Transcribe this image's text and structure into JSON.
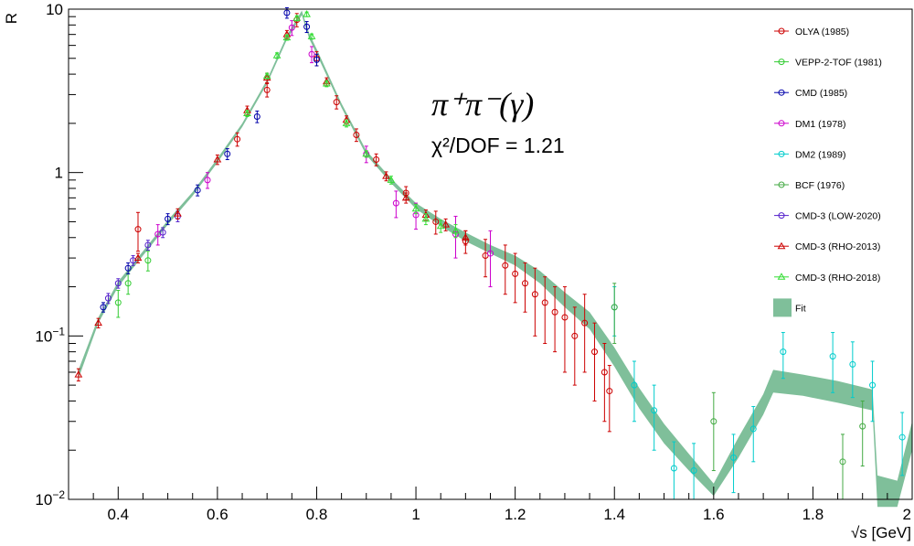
{
  "chart_data": {
    "type": "scatter",
    "xlabel": "√s [GeV]",
    "ylabel": "R",
    "xlim": [
      0.3,
      2.0
    ],
    "ylim": [
      0.01,
      10
    ],
    "yscale": "log",
    "x_tick_labels": [
      "0.4",
      "0.6",
      "0.8",
      "1",
      "1.2",
      "1.4",
      "1.6",
      "1.8",
      "2"
    ],
    "x_ticks": [
      0.4,
      0.6,
      0.8,
      1.0,
      1.2,
      1.4,
      1.6,
      1.8,
      2.0
    ],
    "y_ticks": [
      {
        "value": 10,
        "base": "10",
        "exp": ""
      },
      {
        "value": 1,
        "base": "1",
        "exp": ""
      },
      {
        "value": 0.1,
        "base": "10",
        "exp": "−1"
      },
      {
        "value": 0.01,
        "base": "10",
        "exp": "−2"
      }
    ],
    "annotation": {
      "process": "π⁺π⁻(γ)",
      "chi2_label": "χ²/DOF = 1.21",
      "chi2_value": 1.21
    },
    "series": [
      {
        "name": "OLYA (1985)",
        "color": "#cc0000",
        "marker": "circle",
        "points": [
          [
            0.44,
            0.45,
            0.12
          ],
          [
            0.64,
            1.6,
            0.15
          ],
          [
            0.7,
            3.2,
            0.3
          ],
          [
            0.76,
            8.6,
            0.8
          ],
          [
            0.8,
            5.0,
            0.5
          ],
          [
            0.84,
            2.7,
            0.25
          ],
          [
            0.88,
            1.7,
            0.15
          ],
          [
            0.92,
            1.2,
            0.1
          ],
          [
            0.98,
            0.75,
            0.07
          ],
          [
            1.04,
            0.5,
            0.08
          ],
          [
            1.1,
            0.38,
            0.06
          ],
          [
            1.14,
            0.31,
            0.08
          ],
          [
            1.18,
            0.27,
            0.09
          ],
          [
            1.2,
            0.24,
            0.08
          ],
          [
            1.22,
            0.21,
            0.07
          ],
          [
            1.24,
            0.18,
            0.08
          ],
          [
            1.26,
            0.16,
            0.07
          ],
          [
            1.28,
            0.14,
            0.06
          ],
          [
            1.3,
            0.13,
            0.07
          ],
          [
            1.32,
            0.1,
            0.05
          ],
          [
            1.34,
            0.12,
            0.06
          ],
          [
            1.36,
            0.08,
            0.04
          ],
          [
            1.38,
            0.06,
            0.03
          ],
          [
            1.39,
            0.046,
            0.02
          ]
        ]
      },
      {
        "name": "VEPP-2-TOF (1981)",
        "color": "#33cc33",
        "marker": "circle",
        "points": [
          [
            0.4,
            0.16,
            0.03
          ],
          [
            0.42,
            0.21,
            0.03
          ],
          [
            0.46,
            0.29,
            0.04
          ]
        ]
      },
      {
        "name": "CMD (1985)",
        "color": "#0000aa",
        "marker": "circle",
        "points": [
          [
            0.37,
            0.15,
            0.01
          ],
          [
            0.42,
            0.26,
            0.02
          ],
          [
            0.5,
            0.52,
            0.04
          ],
          [
            0.56,
            0.78,
            0.06
          ],
          [
            0.62,
            1.3,
            0.1
          ],
          [
            0.68,
            2.2,
            0.18
          ],
          [
            0.74,
            9.5,
            0.7
          ],
          [
            0.78,
            7.8,
            0.6
          ],
          [
            0.8,
            4.9,
            0.4
          ]
        ]
      },
      {
        "name": "DM1 (1978)",
        "color": "#cc00cc",
        "marker": "circle",
        "points": [
          [
            0.48,
            0.42,
            0.06
          ],
          [
            0.58,
            0.9,
            0.1
          ],
          [
            0.75,
            7.7,
            0.8
          ],
          [
            0.79,
            5.3,
            0.6
          ],
          [
            0.9,
            1.3,
            0.15
          ],
          [
            0.96,
            0.65,
            0.12
          ],
          [
            1.0,
            0.55,
            0.1
          ],
          [
            1.08,
            0.42,
            0.12
          ],
          [
            1.15,
            0.32,
            0.12
          ]
        ]
      },
      {
        "name": "DM2 (1989)",
        "color": "#00cccc",
        "marker": "circle",
        "points": [
          [
            1.4,
            0.15,
            0.05
          ],
          [
            1.44,
            0.05,
            0.02
          ],
          [
            1.48,
            0.035,
            0.015
          ],
          [
            1.52,
            0.0155,
            0.007
          ],
          [
            1.56,
            0.015,
            0.007
          ],
          [
            1.64,
            0.018,
            0.007
          ],
          [
            1.68,
            0.027,
            0.01
          ],
          [
            1.74,
            0.08,
            0.025
          ],
          [
            1.84,
            0.075,
            0.03
          ],
          [
            1.88,
            0.067,
            0.025
          ],
          [
            1.92,
            0.05,
            0.02
          ],
          [
            1.98,
            0.024,
            0.01
          ]
        ]
      },
      {
        "name": "BCF (1976)",
        "color": "#44aa44",
        "marker": "circle",
        "points": [
          [
            1.4,
            0.15,
            0.06
          ],
          [
            1.6,
            0.03,
            0.015
          ],
          [
            1.86,
            0.017,
            0.008
          ],
          [
            1.9,
            0.028,
            0.012
          ]
        ]
      },
      {
        "name": "CMD-3 (LOW-2020)",
        "color": "#5522cc",
        "marker": "circle",
        "points": [
          [
            0.38,
            0.17,
            0.012
          ],
          [
            0.4,
            0.21,
            0.014
          ],
          [
            0.43,
            0.29,
            0.02
          ],
          [
            0.46,
            0.36,
            0.025
          ],
          [
            0.49,
            0.43,
            0.03
          ],
          [
            0.52,
            0.54,
            0.04
          ]
        ]
      },
      {
        "name": "CMD-3 (RHO-2013)",
        "color": "#cc0000",
        "marker": "triangle",
        "points": [
          [
            0.32,
            0.058,
            0.005
          ],
          [
            0.36,
            0.12,
            0.008
          ],
          [
            0.44,
            0.3,
            0.02
          ],
          [
            0.52,
            0.56,
            0.04
          ],
          [
            0.6,
            1.2,
            0.08
          ],
          [
            0.66,
            2.4,
            0.15
          ],
          [
            0.7,
            3.8,
            0.25
          ],
          [
            0.74,
            7.0,
            0.4
          ],
          [
            0.82,
            3.6,
            0.2
          ],
          [
            0.86,
            2.1,
            0.12
          ],
          [
            0.94,
            0.95,
            0.06
          ],
          [
            0.98,
            0.7,
            0.05
          ],
          [
            1.02,
            0.55,
            0.04
          ],
          [
            1.06,
            0.48,
            0.04
          ],
          [
            1.1,
            0.4,
            0.04
          ]
        ]
      },
      {
        "name": "CMD-3 (RHO-2018)",
        "color": "#33dd33",
        "marker": "triangle",
        "points": [
          [
            0.66,
            2.3,
            0.1
          ],
          [
            0.7,
            3.9,
            0.15
          ],
          [
            0.72,
            5.2,
            0.2
          ],
          [
            0.74,
            6.7,
            0.25
          ],
          [
            0.76,
            8.8,
            0.3
          ],
          [
            0.78,
            9.3,
            0.3
          ],
          [
            0.79,
            6.8,
            0.25
          ],
          [
            0.82,
            3.5,
            0.15
          ],
          [
            0.86,
            2.0,
            0.1
          ],
          [
            0.9,
            1.3,
            0.06
          ],
          [
            0.95,
            0.9,
            0.05
          ],
          [
            1.0,
            0.6,
            0.04
          ],
          [
            1.02,
            0.52,
            0.04
          ],
          [
            1.05,
            0.47,
            0.04
          ],
          [
            1.08,
            0.44,
            0.04
          ]
        ]
      }
    ],
    "fit": {
      "name": "Fit",
      "color": "#7fbf9a",
      "band": [
        [
          0.32,
          0.055,
          0.062
        ],
        [
          0.36,
          0.12,
          0.13
        ],
        [
          0.4,
          0.2,
          0.215
        ],
        [
          0.45,
          0.31,
          0.33
        ],
        [
          0.5,
          0.48,
          0.51
        ],
        [
          0.55,
          0.72,
          0.76
        ],
        [
          0.6,
          1.15,
          1.22
        ],
        [
          0.65,
          1.9,
          2.0
        ],
        [
          0.7,
          3.5,
          3.7
        ],
        [
          0.74,
          6.5,
          6.9
        ],
        [
          0.77,
          9.2,
          9.8
        ],
        [
          0.785,
          6.6,
          7.1
        ],
        [
          0.8,
          5.3,
          5.7
        ],
        [
          0.85,
          2.5,
          2.65
        ],
        [
          0.9,
          1.28,
          1.36
        ],
        [
          0.95,
          0.86,
          0.92
        ],
        [
          1.0,
          0.6,
          0.65
        ],
        [
          1.05,
          0.47,
          0.52
        ],
        [
          1.1,
          0.38,
          0.43
        ],
        [
          1.15,
          0.32,
          0.36
        ],
        [
          1.2,
          0.27,
          0.31
        ],
        [
          1.25,
          0.21,
          0.25
        ],
        [
          1.3,
          0.15,
          0.185
        ],
        [
          1.35,
          0.11,
          0.14
        ],
        [
          1.4,
          0.065,
          0.085
        ],
        [
          1.45,
          0.036,
          0.048
        ],
        [
          1.5,
          0.022,
          0.029
        ],
        [
          1.55,
          0.015,
          0.019
        ],
        [
          1.6,
          0.0105,
          0.0125
        ],
        [
          1.65,
          0.018,
          0.024
        ],
        [
          1.7,
          0.033,
          0.044
        ],
        [
          1.72,
          0.045,
          0.062
        ],
        [
          1.78,
          0.043,
          0.058
        ],
        [
          1.85,
          0.039,
          0.053
        ],
        [
          1.92,
          0.035,
          0.047
        ],
        [
          1.93,
          0.009,
          0.014
        ],
        [
          1.97,
          0.009,
          0.013
        ],
        [
          2.0,
          0.02,
          0.03
        ]
      ]
    },
    "legend_position": "top-right"
  }
}
